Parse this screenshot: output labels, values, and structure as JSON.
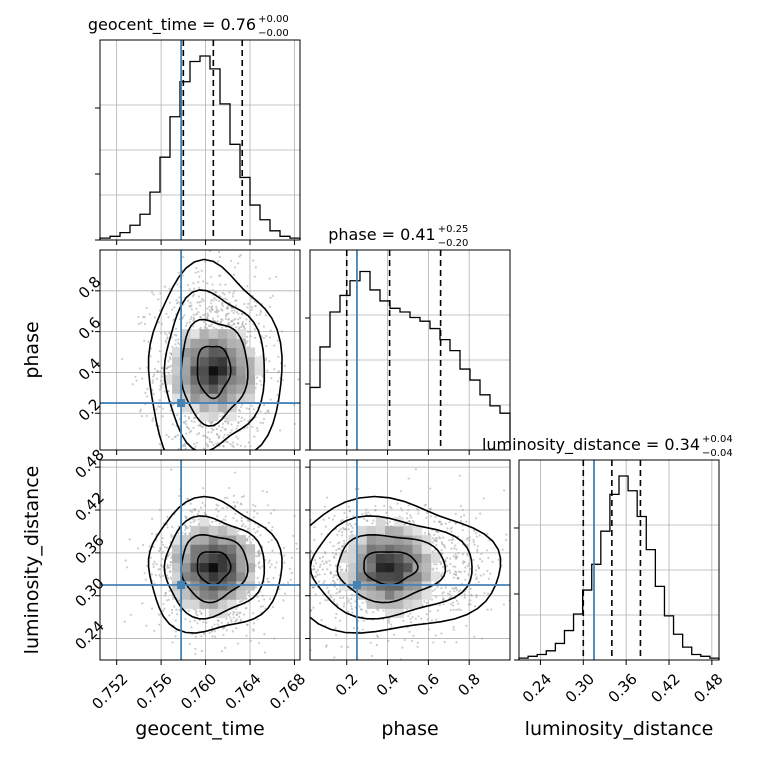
{
  "chart_data": {
    "type": "corner",
    "parameters": [
      {
        "key": "geocent_time",
        "label": "geocent_time",
        "title": "geocent_time = 0.76",
        "title_sup": "+0.00",
        "title_sub": "−0.00",
        "range": [
          0.7505,
          0.7685
        ],
        "ticks": [
          0.752,
          0.756,
          0.76,
          0.764,
          0.768
        ],
        "tick_labels": [
          "0.752",
          "0.756",
          "0.760",
          "0.764",
          "0.768"
        ],
        "truth": 0.7578,
        "quantiles": [
          0.758,
          0.7607,
          0.7633
        ],
        "hist_bins": [
          0.7505,
          0.7685
        ],
        "hist": [
          1,
          2,
          4,
          8,
          14,
          26,
          45,
          67,
          86,
          97,
          100,
          93,
          74,
          52,
          34,
          19,
          11,
          5,
          2,
          1
        ]
      },
      {
        "key": "phase",
        "label": "phase",
        "title": "phase = 0.41",
        "title_sup": "+0.25",
        "title_sub": "−0.20",
        "range": [
          0.02,
          1.0
        ],
        "ticks": [
          0.2,
          0.4,
          0.6,
          0.8
        ],
        "tick_labels": [
          "0.2",
          "0.4",
          "0.6",
          "0.8"
        ],
        "truth": 0.25,
        "quantiles": [
          0.2,
          0.41,
          0.66
        ],
        "hist_bins": [
          0.02,
          1.0
        ],
        "hist": [
          34,
          56,
          75,
          84,
          92,
          97,
          87,
          81,
          77,
          75,
          72,
          70,
          66,
          60,
          54,
          44,
          38,
          30,
          24,
          20
        ]
      },
      {
        "key": "luminosity_distance",
        "label": "luminosity_distance",
        "title": "luminosity_distance = 0.34",
        "title_sup": "+0.04",
        "title_sub": "−0.04",
        "range": [
          0.21,
          0.49
        ],
        "ticks": [
          0.24,
          0.3,
          0.36,
          0.42,
          0.48
        ],
        "tick_labels": [
          "0.24",
          "0.30",
          "0.36",
          "0.42",
          "0.48"
        ],
        "truth": 0.315,
        "quantiles": [
          0.3,
          0.34,
          0.38
        ],
        "hist_bins": [
          0.21,
          0.49
        ],
        "hist": [
          1,
          2,
          3,
          5,
          9,
          16,
          25,
          38,
          52,
          70,
          90,
          100,
          92,
          78,
          60,
          40,
          24,
          14,
          7,
          3,
          2,
          1
        ]
      }
    ],
    "pairs": [
      {
        "x": "geocent_time",
        "y": "phase",
        "center": [
          0.7607,
          0.41
        ],
        "sigma": [
          0.0025,
          0.22
        ]
      },
      {
        "x": "geocent_time",
        "y": "luminosity_distance",
        "center": [
          0.7607,
          0.34
        ],
        "sigma": [
          0.0025,
          0.04
        ]
      },
      {
        "x": "phase",
        "y": "luminosity_distance",
        "center": [
          0.41,
          0.34
        ],
        "sigma": [
          0.22,
          0.04
        ]
      }
    ],
    "contour_levels_sigma": [
      0.5,
      1.0,
      1.5,
      2.0
    ],
    "colors": {
      "truth": "#4682b4",
      "hist": "#000000",
      "quantile": "#000000",
      "contour": "#000000",
      "grid": "#b0b0b0"
    },
    "grid": true
  }
}
